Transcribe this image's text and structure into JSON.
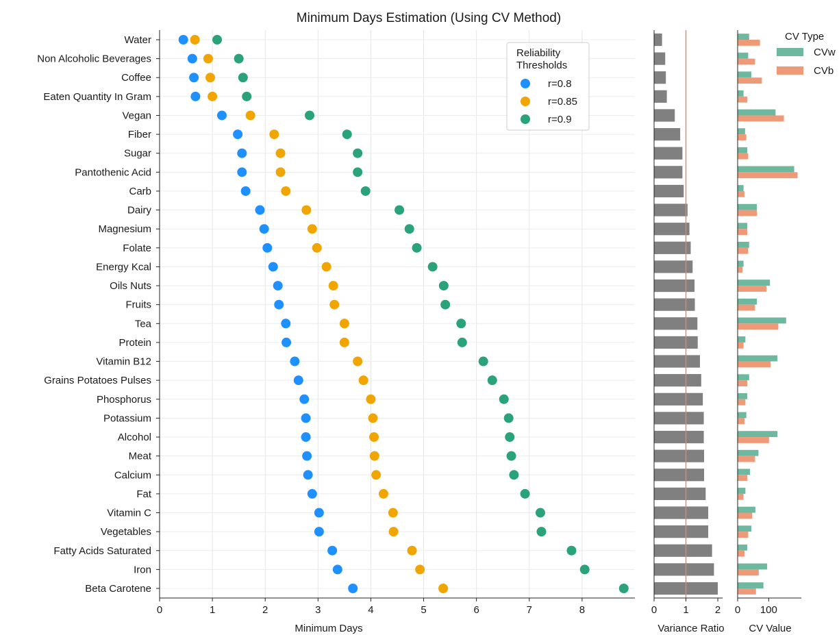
{
  "chart_data": [
    {
      "type": "scatter",
      "title": "Minimum Days Estimation (Using CV Method)",
      "xlabel": "Minimum Days",
      "ylabel": "",
      "xlim": [
        0,
        9
      ],
      "x_ticks": [
        0,
        1,
        2,
        3,
        4,
        5,
        6,
        7,
        8
      ],
      "grid": true,
      "legend_title": "Reliability\nThresholds",
      "legend_placement": "top-center",
      "categories": [
        "Water",
        "Non Alcoholic Beverages",
        "Coffee",
        "Eaten Quantity In Gram",
        "Vegan",
        "Fiber",
        "Sugar",
        "Pantothenic Acid",
        "Carb",
        "Dairy",
        "Magnesium",
        "Folate",
        "Energy Kcal",
        "Oils Nuts",
        "Fruits",
        "Tea",
        "Protein",
        "Vitamin B12",
        "Grains Potatoes Pulses",
        "Phosphorus",
        "Potassium",
        "Alcohol",
        "Meat",
        "Calcium",
        "Fat",
        "Vitamin C",
        "Vegetables",
        "Fatty Acids Saturated",
        "Iron",
        "Beta Carotene"
      ],
      "series": [
        {
          "name": "r=0.8",
          "color": "#1e90ff",
          "values": [
            0.45,
            0.62,
            0.65,
            0.68,
            1.18,
            1.48,
            1.56,
            1.56,
            1.63,
            1.9,
            1.98,
            2.04,
            2.15,
            2.24,
            2.26,
            2.39,
            2.4,
            2.56,
            2.63,
            2.74,
            2.77,
            2.77,
            2.79,
            2.81,
            2.89,
            3.02,
            3.02,
            3.27,
            3.37,
            3.66
          ]
        },
        {
          "name": "r=0.85",
          "color": "#f0a500",
          "values": [
            0.67,
            0.92,
            0.96,
            1.0,
            1.72,
            2.17,
            2.29,
            2.29,
            2.39,
            2.78,
            2.89,
            2.98,
            3.16,
            3.29,
            3.31,
            3.5,
            3.5,
            3.75,
            3.86,
            4.0,
            4.04,
            4.06,
            4.07,
            4.1,
            4.24,
            4.42,
            4.43,
            4.78,
            4.93,
            5.37
          ]
        },
        {
          "name": "r=0.9",
          "color": "#2aa37a",
          "values": [
            1.09,
            1.5,
            1.58,
            1.65,
            2.84,
            3.55,
            3.75,
            3.75,
            3.9,
            4.54,
            4.73,
            4.87,
            5.17,
            5.38,
            5.41,
            5.71,
            5.73,
            6.13,
            6.3,
            6.52,
            6.61,
            6.63,
            6.66,
            6.71,
            6.92,
            7.21,
            7.23,
            7.8,
            8.05,
            8.79
          ]
        }
      ]
    },
    {
      "type": "bar",
      "orientation": "horizontal",
      "xlabel": "Variance Ratio",
      "xlim": [
        0,
        2.15
      ],
      "x_ticks": [
        0,
        1,
        2
      ],
      "reference_line": 1,
      "reference_color": "#e8806f",
      "bar_color": "#808080",
      "values": [
        0.25,
        0.35,
        0.37,
        0.4,
        0.65,
        0.82,
        0.89,
        0.89,
        0.93,
        1.05,
        1.11,
        1.15,
        1.21,
        1.27,
        1.28,
        1.36,
        1.37,
        1.44,
        1.48,
        1.53,
        1.56,
        1.56,
        1.57,
        1.57,
        1.62,
        1.7,
        1.7,
        1.82,
        1.88,
        2.0
      ]
    },
    {
      "type": "bar",
      "orientation": "horizontal",
      "xlabel": "CV Value",
      "xlim": [
        0,
        205
      ],
      "x_ticks": [
        0,
        100
      ],
      "legend_title": "CV Type",
      "legend_placement": "top-right",
      "series": [
        {
          "name": "CVw",
          "color": "#6db89e",
          "values": [
            37,
            34,
            44,
            19,
            122,
            24,
            31,
            182,
            19,
            62,
            31,
            37,
            19,
            104,
            62,
            156,
            25,
            128,
            37,
            31,
            28,
            128,
            67,
            40,
            25,
            57,
            44,
            31,
            95,
            83
          ]
        },
        {
          "name": "CVb",
          "color": "#ee9a79",
          "values": [
            72,
            56,
            78,
            31,
            149,
            28,
            34,
            193,
            22,
            62,
            31,
            34,
            16,
            93,
            56,
            131,
            19,
            106,
            31,
            25,
            22,
            101,
            56,
            31,
            19,
            47,
            34,
            22,
            68,
            59
          ]
        }
      ]
    }
  ]
}
